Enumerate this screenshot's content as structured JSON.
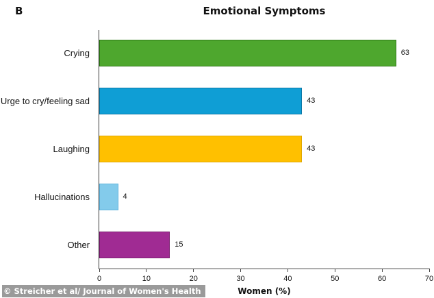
{
  "panel_letter": "B",
  "credit": "© Streicher et al/ Journal of Women's Health",
  "chart_data": {
    "type": "bar",
    "orientation": "horizontal",
    "title": "Emotional Symptoms",
    "xlabel": "Women (%)",
    "ylabel": "",
    "xlim": [
      0,
      70
    ],
    "x_ticks": [
      "0",
      "10",
      "20",
      "30",
      "40",
      "50",
      "60",
      "70"
    ],
    "grid": false,
    "legend": null,
    "categories": [
      "Crying",
      "Urge to cry/feeling sad",
      "Laughing",
      "Hallucinations",
      "Other"
    ],
    "values": [
      63,
      43,
      43,
      4,
      15
    ],
    "value_labels": [
      "63",
      "43",
      "43",
      "4",
      "15"
    ],
    "colors": [
      "#4EA72E",
      "#0F9ED5",
      "#FFC000",
      "#83CBEB",
      "#A02B93"
    ],
    "border_colors": [
      "#2f7a17",
      "#0b78a6",
      "#e0a800",
      "#5fb3dc",
      "#7a1e70"
    ]
  }
}
